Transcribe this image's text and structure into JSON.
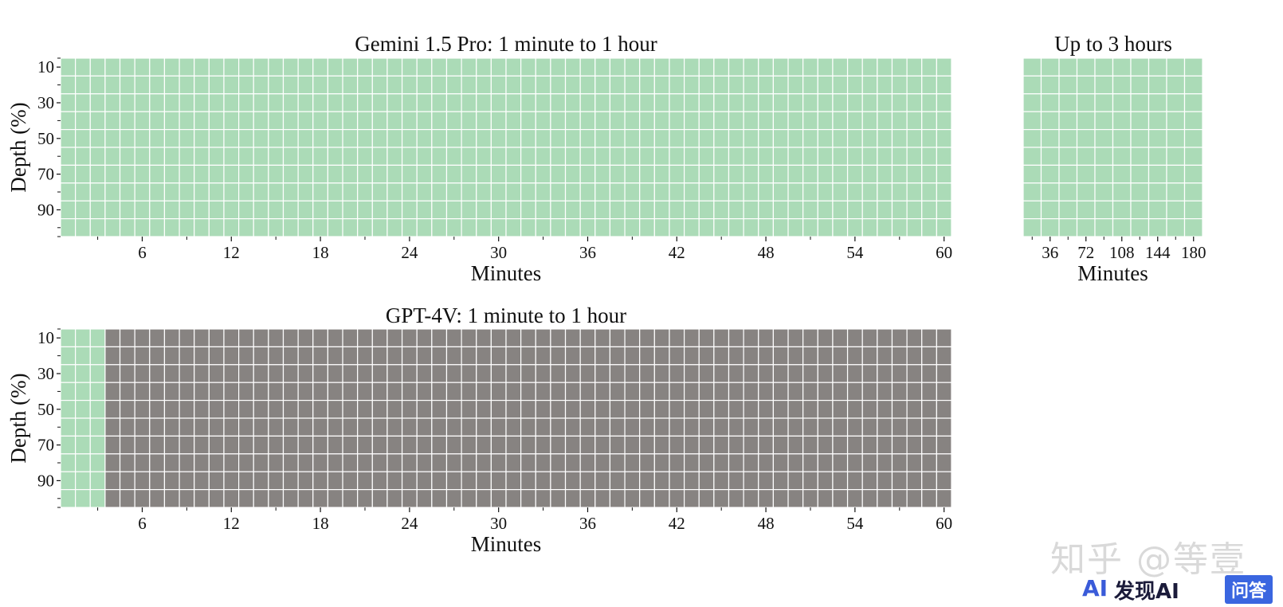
{
  "colors": {
    "pass": "#abdbb7",
    "fail": "#878381",
    "grid": "#ffffff"
  },
  "chart_data": [
    {
      "type": "heatmap",
      "title": "Gemini 1.5 Pro: 1 minute to 1 hour",
      "xlabel": "Minutes",
      "ylabel": "Depth (%)",
      "x_range": [
        1,
        60
      ],
      "xticks": [
        "6",
        "12",
        "18",
        "24",
        "30",
        "36",
        "42",
        "48",
        "54",
        "60"
      ],
      "yticks": [
        "10",
        "30",
        "50",
        "70",
        "90"
      ],
      "rows": 10,
      "cols": 60,
      "fail_cols": [],
      "legend": "none"
    },
    {
      "type": "heatmap",
      "title": "Up to 3 hours",
      "xlabel": "Minutes",
      "ylabel": "",
      "x_range": [
        18,
        180
      ],
      "xticks": [
        "36",
        "72",
        "108",
        "144",
        "180"
      ],
      "yticks": [],
      "rows": 10,
      "cols": 10,
      "fail_cols": [],
      "legend": "none"
    },
    {
      "type": "heatmap",
      "title": "GPT-4V: 1 minute to 1 hour",
      "xlabel": "Minutes",
      "ylabel": "Depth (%)",
      "x_range": [
        1,
        60
      ],
      "xticks": [
        "6",
        "12",
        "18",
        "24",
        "30",
        "36",
        "42",
        "48",
        "54",
        "60"
      ],
      "yticks": [
        "10",
        "30",
        "50",
        "70",
        "90"
      ],
      "rows": 10,
      "cols": 60,
      "fail_cols": [
        [
          4,
          60
        ]
      ],
      "legend": "none"
    }
  ],
  "watermark": {
    "zhihu": "知乎 @等壹",
    "brand_logo": "AI",
    "brand": "发现AI",
    "badge": "问答"
  }
}
